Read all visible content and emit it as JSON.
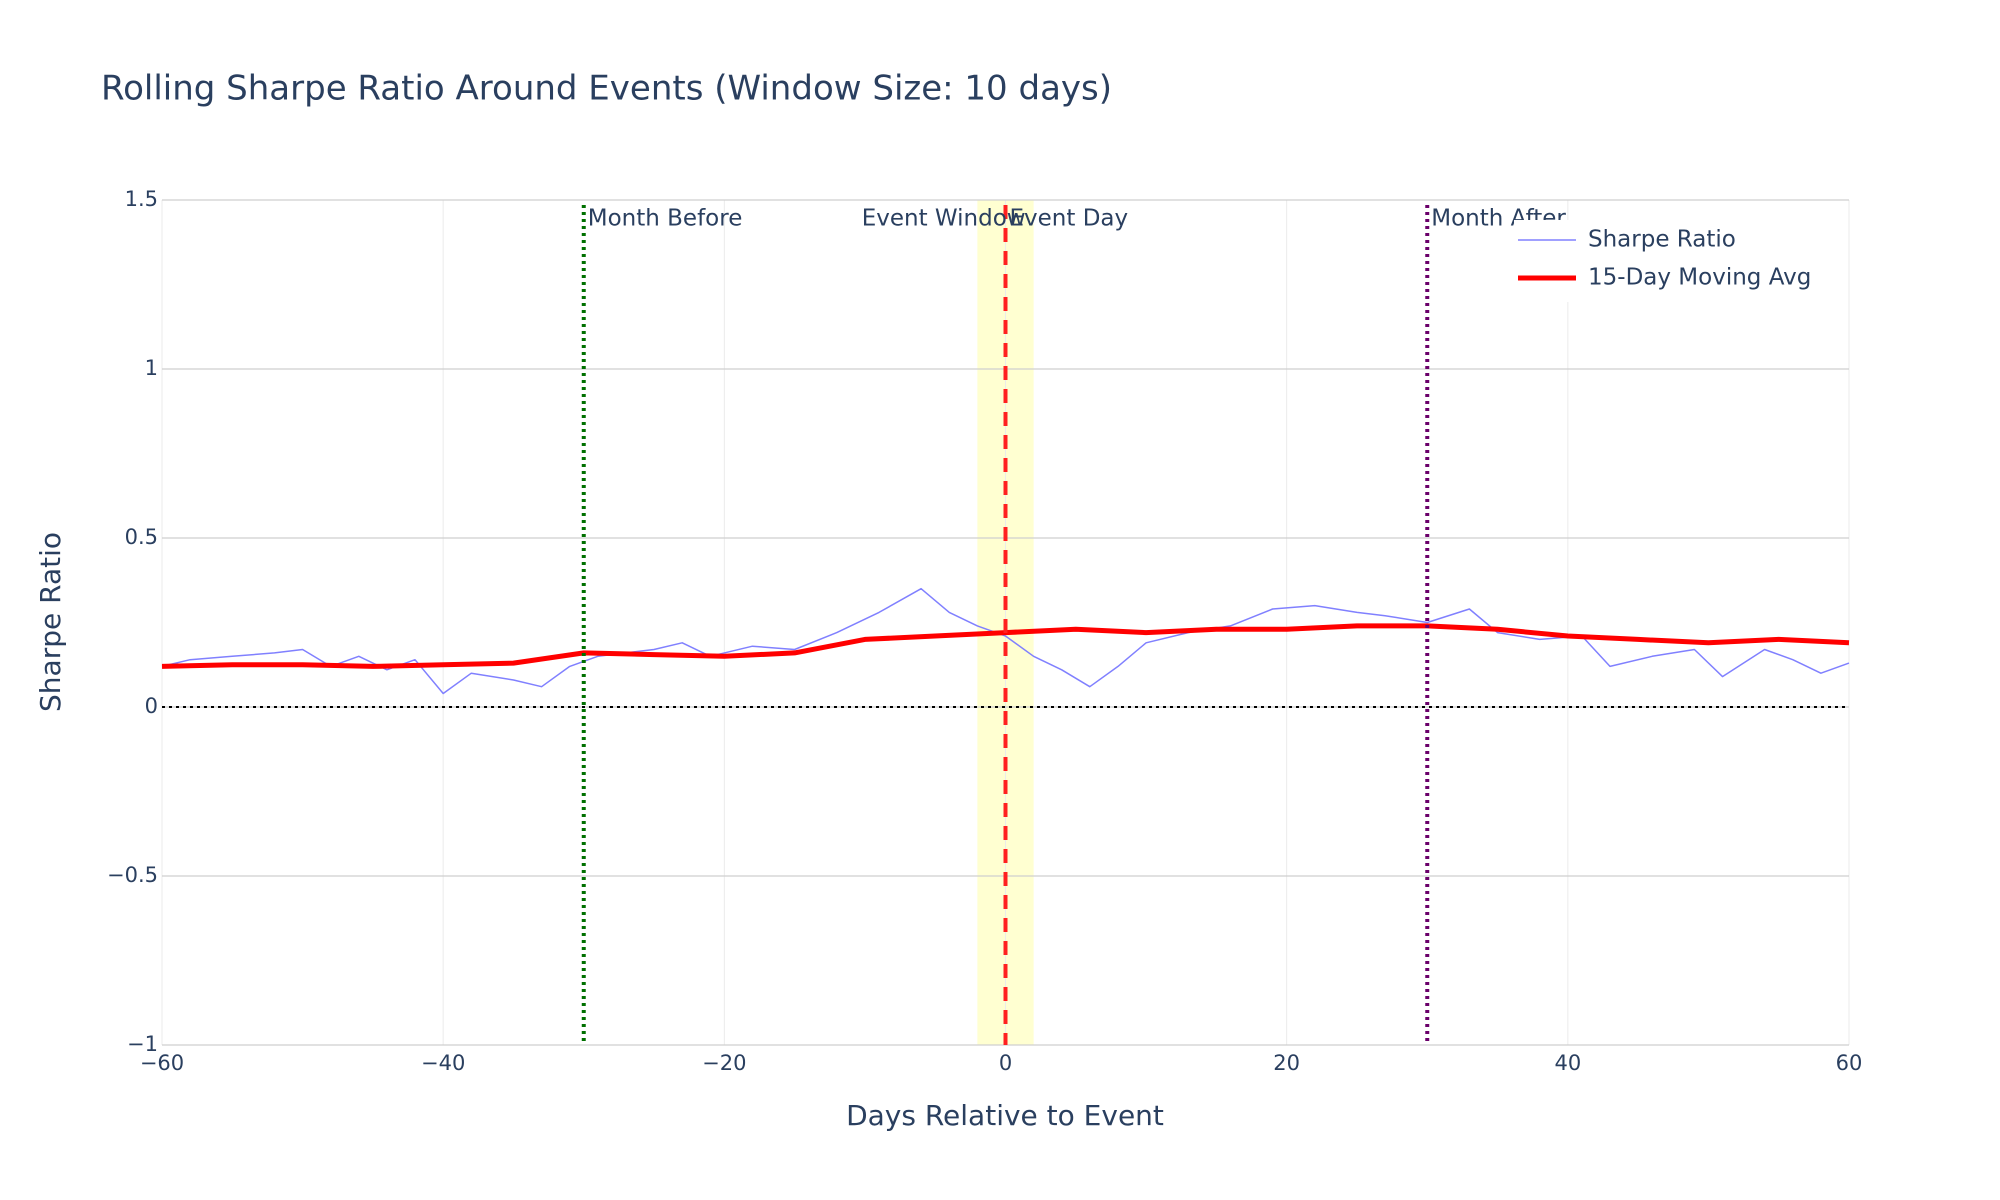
{
  "chart_data": {
    "type": "line",
    "title": "Rolling Sharpe Ratio Around Events (Window Size: 10 days)",
    "x_label": "Days Relative to Event",
    "y_label": "Sharpe Ratio",
    "xlim": [
      -60,
      60
    ],
    "ylim": [
      -1,
      1.5
    ],
    "xticks": [
      {
        "value": -60,
        "label": "−60"
      },
      {
        "value": -40,
        "label": "−40"
      },
      {
        "value": -20,
        "label": "−20"
      },
      0,
      20,
      40,
      60
    ],
    "yticks": [
      {
        "value": -1,
        "label": "−1"
      },
      {
        "value": -0.5,
        "label": "−0.5"
      },
      0,
      0.5,
      1,
      1.5
    ],
    "grid": true,
    "legend": "top-right",
    "shaded_region": {
      "x": [
        -2,
        2
      ],
      "color": "#ffffcc",
      "label": "Event Window"
    },
    "reference_lines": [
      {
        "x": -30,
        "color": "#007000",
        "dash": "dot",
        "label": "Month Before"
      },
      {
        "x": 0,
        "color": "#ff2020",
        "dash": "dash",
        "label": "Event Day"
      },
      {
        "x": 30,
        "color": "#6a006a",
        "dash": "dot",
        "label": "Month After"
      }
    ],
    "hline": {
      "y": 0,
      "color": "#000000",
      "dash": "dot"
    },
    "series": [
      {
        "name": "Sharpe Ratio",
        "color": "#8080ff",
        "width": 1.5,
        "x": [
          -60,
          -58,
          -55,
          -52,
          -50,
          -48,
          -46,
          -44,
          -42,
          -40,
          -38,
          -35,
          -33,
          -31,
          -29,
          -27,
          -25,
          -23,
          -21,
          -18,
          -15,
          -12,
          -9,
          -6,
          -4,
          -2,
          0,
          2,
          4,
          6,
          8,
          10,
          13,
          16,
          19,
          22,
          25,
          27,
          30,
          33,
          35,
          38,
          41,
          43,
          46,
          49,
          51,
          54,
          56,
          58,
          60
        ],
        "values": [
          0.12,
          0.14,
          0.15,
          0.16,
          0.17,
          0.12,
          0.15,
          0.11,
          0.14,
          0.04,
          0.1,
          0.08,
          0.06,
          0.12,
          0.15,
          0.16,
          0.17,
          0.19,
          0.15,
          0.18,
          0.17,
          0.22,
          0.28,
          0.35,
          0.28,
          0.24,
          0.21,
          0.15,
          0.11,
          0.06,
          0.12,
          0.19,
          0.22,
          0.24,
          0.29,
          0.3,
          0.28,
          0.27,
          0.25,
          0.29,
          0.22,
          0.2,
          0.21,
          0.12,
          0.15,
          0.17,
          0.09,
          0.17,
          0.14,
          0.1,
          0.13
        ]
      },
      {
        "name": "15-Day Moving Avg",
        "color": "#ff0000",
        "width": 5,
        "x": [
          -60,
          -55,
          -50,
          -45,
          -40,
          -35,
          -30,
          -25,
          -20,
          -15,
          -10,
          -5,
          0,
          5,
          10,
          15,
          20,
          25,
          30,
          35,
          40,
          45,
          50,
          55,
          60
        ],
        "values": [
          0.12,
          0.125,
          0.125,
          0.12,
          0.125,
          0.13,
          0.16,
          0.155,
          0.15,
          0.16,
          0.2,
          0.21,
          0.22,
          0.23,
          0.22,
          0.23,
          0.23,
          0.24,
          0.24,
          0.23,
          0.21,
          0.2,
          0.19,
          0.2,
          0.19
        ]
      }
    ]
  }
}
